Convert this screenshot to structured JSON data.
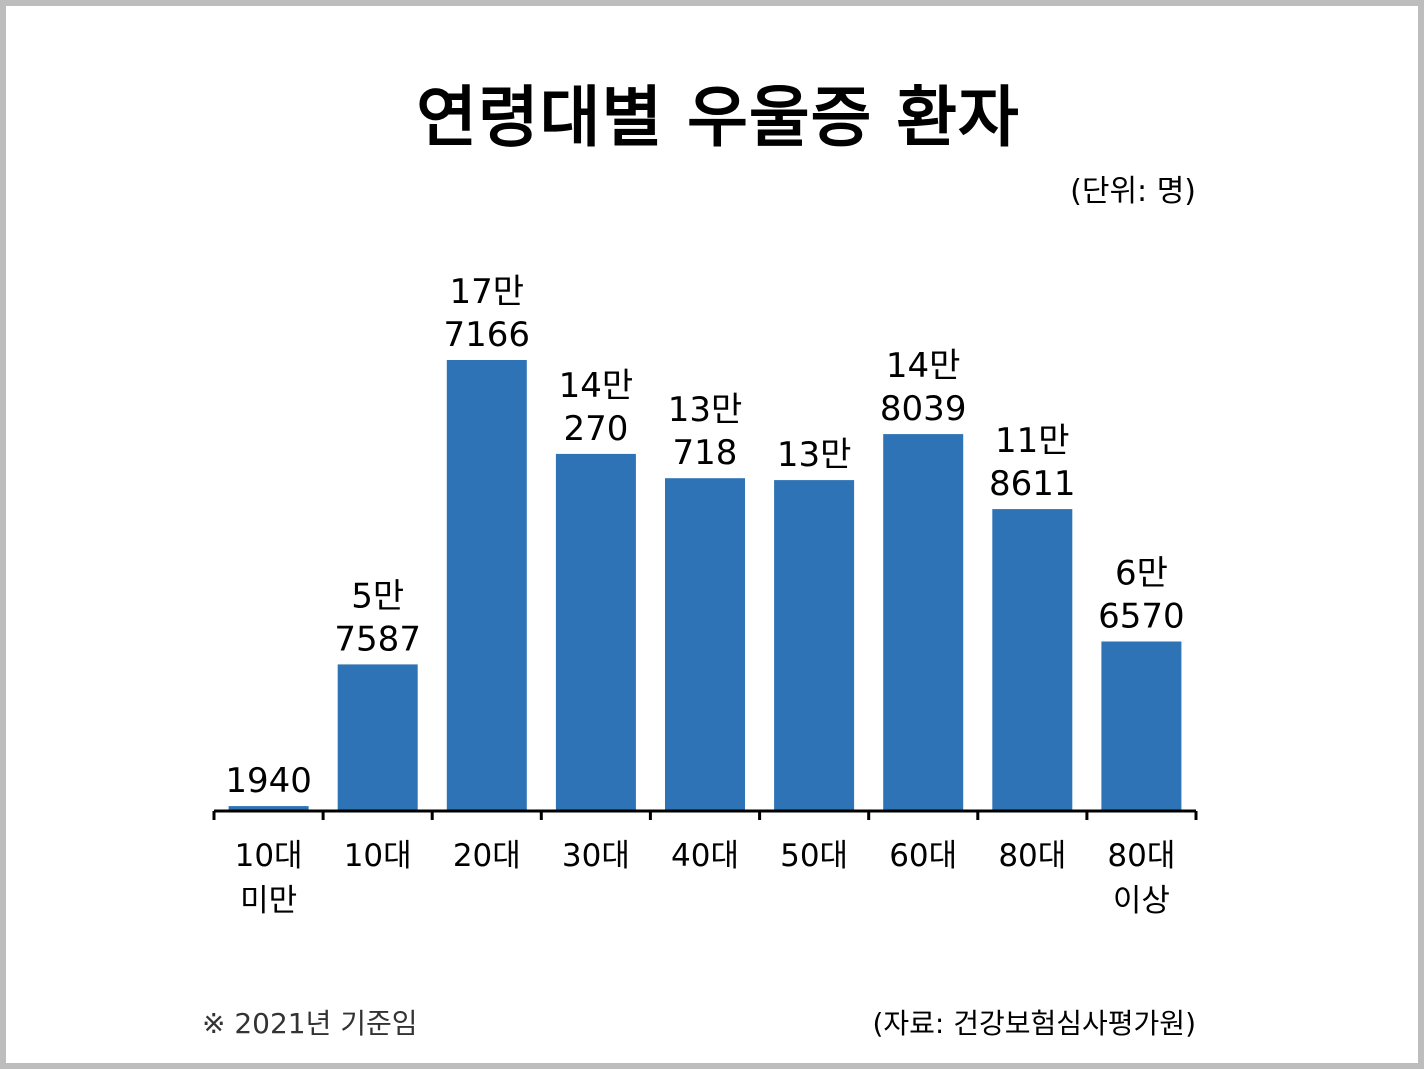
{
  "title": "연령대별 우울증 환자",
  "unit": "(단위: 명)",
  "footnote": "※ 2021년 기준임",
  "source": "(자료: 건강보험심사평가원)",
  "chart_data": {
    "type": "bar",
    "categories": [
      [
        "10대",
        "미만"
      ],
      [
        "10대"
      ],
      [
        "20대"
      ],
      [
        "30대"
      ],
      [
        "40대"
      ],
      [
        "50대"
      ],
      [
        "60대"
      ],
      [
        "80대"
      ],
      [
        "80대",
        "이상"
      ]
    ],
    "values": [
      1940,
      57587,
      177166,
      140270,
      130718,
      130000,
      148039,
      118611,
      66570
    ],
    "data_labels": [
      [
        "1940"
      ],
      [
        "5만",
        "7587"
      ],
      [
        "17만",
        "7166"
      ],
      [
        "14만",
        "270"
      ],
      [
        "13만",
        "718"
      ],
      [
        "13만"
      ],
      [
        "14만",
        "8039"
      ],
      [
        "11만",
        "8611"
      ],
      [
        "6만",
        "6570"
      ]
    ],
    "bar_color": "#2e73b5",
    "axis_color": "#000000",
    "ylim": [
      0,
      177166
    ],
    "grid": false,
    "legend": "none"
  }
}
